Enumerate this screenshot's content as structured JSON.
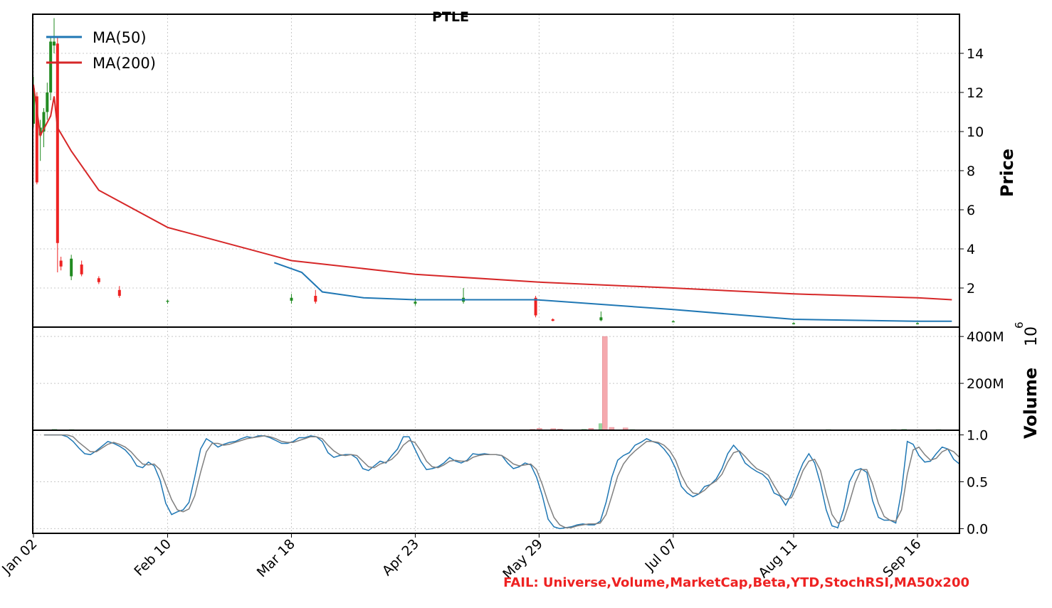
{
  "chart_data": [
    {
      "type": "candlestick",
      "title": "PTLE",
      "ylabel": "Price",
      "ylim": [
        0,
        16
      ],
      "yticks": [
        2,
        4,
        6,
        8,
        10,
        12,
        14
      ],
      "grid": true,
      "legend_position": "top-left",
      "colors": {
        "up": "#228B22",
        "down": "#ee2222",
        "ma50": "#1f77b4",
        "ma200": "#d62728"
      },
      "x": [
        "Jan 02",
        "Feb 10",
        "Mar 18",
        "Apr 23",
        "May 29",
        "Jul 07",
        "Aug 11",
        "Sep 16"
      ],
      "candles_sample": [
        {
          "date": "Jan 02",
          "open": 10.4,
          "high": 12.8,
          "low": 10.2,
          "close": 12.2
        },
        {
          "date": "Jan 03",
          "open": 11.8,
          "high": 12.0,
          "low": 7.3,
          "close": 7.4
        },
        {
          "date": "Jan 04",
          "open": 9.8,
          "high": 10.6,
          "low": 8.5,
          "close": 10.2
        },
        {
          "date": "Jan 05",
          "open": 10.0,
          "high": 11.2,
          "low": 9.2,
          "close": 11.0
        },
        {
          "date": "Jan 06",
          "open": 11.0,
          "high": 12.5,
          "low": 10.6,
          "close": 12.0
        },
        {
          "date": "Jan 07",
          "open": 12.0,
          "high": 14.8,
          "low": 11.6,
          "close": 14.6
        },
        {
          "date": "Jan 08",
          "open": 14.4,
          "high": 15.8,
          "low": 14.0,
          "close": 14.6
        },
        {
          "date": "Jan 09",
          "open": 14.5,
          "high": 14.8,
          "low": 2.8,
          "close": 4.3
        },
        {
          "date": "Jan 10",
          "open": 3.4,
          "high": 3.6,
          "low": 2.9,
          "close": 3.1
        },
        {
          "date": "Jan 13",
          "open": 2.6,
          "high": 3.7,
          "low": 2.4,
          "close": 3.5
        },
        {
          "date": "Jan 16",
          "open": 3.2,
          "high": 3.4,
          "low": 2.6,
          "close": 2.7
        },
        {
          "date": "Jan 21",
          "open": 2.5,
          "high": 2.6,
          "low": 2.2,
          "close": 2.3
        },
        {
          "date": "Jan 27",
          "open": 1.9,
          "high": 2.1,
          "low": 1.5,
          "close": 1.6
        },
        {
          "date": "Feb 10",
          "open": 1.3,
          "high": 1.4,
          "low": 1.2,
          "close": 1.35
        },
        {
          "date": "Mar 18",
          "open": 1.35,
          "high": 1.7,
          "low": 1.2,
          "close": 1.5
        },
        {
          "date": "Mar 25",
          "open": 1.6,
          "high": 1.9,
          "low": 1.2,
          "close": 1.3
        },
        {
          "date": "Apr 23",
          "open": 1.2,
          "high": 1.5,
          "low": 1.1,
          "close": 1.3
        },
        {
          "date": "May 07",
          "open": 1.3,
          "high": 2.0,
          "low": 1.2,
          "close": 1.5
        },
        {
          "date": "May 28",
          "open": 1.5,
          "high": 1.6,
          "low": 0.5,
          "close": 0.6
        },
        {
          "date": "Jun 02",
          "open": 0.4,
          "high": 0.45,
          "low": 0.3,
          "close": 0.32
        },
        {
          "date": "Jun 16",
          "open": 0.35,
          "high": 0.8,
          "low": 0.3,
          "close": 0.5
        },
        {
          "date": "Jul 07",
          "open": 0.3,
          "high": 0.35,
          "low": 0.25,
          "close": 0.3
        },
        {
          "date": "Aug 11",
          "open": 0.2,
          "high": 0.25,
          "low": 0.18,
          "close": 0.2
        },
        {
          "date": "Sep 16",
          "open": 0.2,
          "high": 0.25,
          "low": 0.18,
          "close": 0.2
        }
      ],
      "series": [
        {
          "name": "MA(50)",
          "x": [
            "Mar 13",
            "Mar 21",
            "Mar 27",
            "Apr 08",
            "Apr 23",
            "May 07",
            "May 28",
            "Jul 07",
            "Aug 11",
            "Sep 16",
            "Sep 26"
          ],
          "values": [
            3.3,
            2.8,
            1.8,
            1.5,
            1.4,
            1.4,
            1.4,
            0.9,
            0.4,
            0.3,
            0.3
          ]
        },
        {
          "name": "MA(200)",
          "x": [
            "Jan 02",
            "Jan 04",
            "Jan 07",
            "Jan 08",
            "Jan 09",
            "Jan 13",
            "Jan 21",
            "Feb 10",
            "Mar 18",
            "Apr 23",
            "May 29",
            "Jul 07",
            "Aug 11",
            "Sep 16",
            "Sep 26"
          ],
          "values": [
            12.4,
            9.8,
            10.8,
            11.8,
            10.2,
            9.0,
            7.0,
            5.1,
            3.4,
            2.7,
            2.3,
            2.0,
            1.7,
            1.5,
            1.4
          ]
        }
      ]
    },
    {
      "type": "bar",
      "ylabel": "Volume",
      "exponent_label": "10",
      "exponent_power": "6",
      "yticks": [
        "200M",
        "400M"
      ],
      "ylim": [
        0,
        440
      ],
      "unit": "millions",
      "bars": [
        {
          "date": "Jan 08",
          "value": 4,
          "direction": "up"
        },
        {
          "date": "Jan 13",
          "value": 3,
          "direction": "up"
        },
        {
          "date": "May 20",
          "value": 2,
          "direction": "up"
        },
        {
          "date": "May 27",
          "value": 4,
          "direction": "down"
        },
        {
          "date": "May 29",
          "value": 8,
          "direction": "down"
        },
        {
          "date": "Jun 02",
          "value": 7,
          "direction": "down"
        },
        {
          "date": "Jun 04",
          "value": 5,
          "direction": "down"
        },
        {
          "date": "Jun 11",
          "value": 4,
          "direction": "up"
        },
        {
          "date": "Jun 13",
          "value": 8,
          "direction": "down"
        },
        {
          "date": "Jun 16",
          "value": 28,
          "direction": "up"
        },
        {
          "date": "Jun 17",
          "value": 400,
          "direction": "down"
        },
        {
          "date": "Jun 19",
          "value": 12,
          "direction": "down"
        },
        {
          "date": "Jun 23",
          "value": 10,
          "direction": "down"
        },
        {
          "date": "Jun 25",
          "value": 3,
          "direction": "up"
        },
        {
          "date": "Aug 21",
          "value": 3,
          "direction": "up"
        },
        {
          "date": "Sep 09",
          "value": 3,
          "direction": "up"
        },
        {
          "date": "Sep 12",
          "value": 4,
          "direction": "up"
        },
        {
          "date": "Sep 22",
          "value": 3,
          "direction": "up"
        }
      ]
    },
    {
      "type": "line",
      "yticks": [
        0.0,
        0.5,
        1.0
      ],
      "ylim": [
        -0.05,
        1.05
      ],
      "series": [
        {
          "color": "#1f77b4",
          "values": [
            1.0,
            1.0,
            1.0,
            1.0,
            0.98,
            0.93,
            0.86,
            0.8,
            0.79,
            0.83,
            0.88,
            0.93,
            0.91,
            0.88,
            0.84,
            0.77,
            0.67,
            0.65,
            0.71,
            0.67,
            0.52,
            0.27,
            0.15,
            0.18,
            0.2,
            0.28,
            0.55,
            0.85,
            0.96,
            0.92,
            0.87,
            0.9,
            0.92,
            0.93,
            0.96,
            0.98,
            0.97,
            0.99,
            0.99,
            0.97,
            0.94,
            0.91,
            0.91,
            0.93,
            0.97,
            0.97,
            0.99,
            0.98,
            0.93,
            0.81,
            0.76,
            0.78,
            0.79,
            0.79,
            0.75,
            0.64,
            0.62,
            0.67,
            0.72,
            0.7,
            0.78,
            0.85,
            0.98,
            0.98,
            0.85,
            0.72,
            0.63,
            0.64,
            0.66,
            0.7,
            0.76,
            0.72,
            0.7,
            0.73,
            0.8,
            0.79,
            0.8,
            0.79,
            0.79,
            0.78,
            0.7,
            0.64,
            0.66,
            0.7,
            0.68,
            0.55,
            0.35,
            0.1,
            0.02,
            0.0,
            0.01,
            0.02,
            0.04,
            0.05,
            0.04,
            0.04,
            0.08,
            0.28,
            0.55,
            0.73,
            0.78,
            0.81,
            0.89,
            0.92,
            0.96,
            0.93,
            0.91,
            0.85,
            0.77,
            0.64,
            0.45,
            0.38,
            0.34,
            0.37,
            0.45,
            0.47,
            0.53,
            0.64,
            0.8,
            0.89,
            0.82,
            0.7,
            0.65,
            0.61,
            0.58,
            0.52,
            0.38,
            0.35,
            0.25,
            0.37,
            0.55,
            0.7,
            0.8,
            0.7,
            0.48,
            0.2,
            0.03,
            0.01,
            0.2,
            0.5,
            0.62,
            0.64,
            0.6,
            0.3,
            0.12,
            0.09,
            0.09,
            0.06,
            0.4,
            0.93,
            0.9,
            0.78,
            0.71,
            0.72,
            0.8,
            0.87,
            0.85,
            0.74,
            0.69
          ]
        },
        {
          "color": "#7f7f7f",
          "values": [
            1.0,
            1.0,
            1.0,
            1.0,
            1.0,
            0.98,
            0.92,
            0.87,
            0.82,
            0.82,
            0.86,
            0.9,
            0.92,
            0.9,
            0.87,
            0.82,
            0.75,
            0.69,
            0.68,
            0.69,
            0.63,
            0.47,
            0.31,
            0.2,
            0.18,
            0.21,
            0.35,
            0.6,
            0.82,
            0.91,
            0.91,
            0.89,
            0.9,
            0.92,
            0.94,
            0.96,
            0.97,
            0.98,
            0.99,
            0.98,
            0.96,
            0.93,
            0.92,
            0.92,
            0.94,
            0.96,
            0.98,
            0.98,
            0.96,
            0.89,
            0.83,
            0.79,
            0.78,
            0.79,
            0.78,
            0.72,
            0.66,
            0.65,
            0.69,
            0.71,
            0.74,
            0.8,
            0.89,
            0.94,
            0.92,
            0.83,
            0.72,
            0.66,
            0.65,
            0.68,
            0.72,
            0.73,
            0.72,
            0.72,
            0.76,
            0.78,
            0.79,
            0.79,
            0.79,
            0.78,
            0.74,
            0.69,
            0.67,
            0.68,
            0.69,
            0.63,
            0.47,
            0.28,
            0.12,
            0.04,
            0.01,
            0.01,
            0.03,
            0.04,
            0.05,
            0.05,
            0.06,
            0.15,
            0.35,
            0.56,
            0.69,
            0.77,
            0.83,
            0.88,
            0.93,
            0.93,
            0.92,
            0.89,
            0.83,
            0.73,
            0.57,
            0.45,
            0.38,
            0.37,
            0.41,
            0.47,
            0.51,
            0.58,
            0.71,
            0.81,
            0.83,
            0.77,
            0.7,
            0.64,
            0.61,
            0.57,
            0.46,
            0.36,
            0.31,
            0.33,
            0.46,
            0.62,
            0.72,
            0.74,
            0.62,
            0.37,
            0.15,
            0.06,
            0.09,
            0.28,
            0.49,
            0.63,
            0.63,
            0.48,
            0.27,
            0.13,
            0.09,
            0.08,
            0.2,
            0.58,
            0.84,
            0.87,
            0.79,
            0.73,
            0.75,
            0.82,
            0.85,
            0.82,
            0.76
          ]
        }
      ]
    }
  ],
  "annotation": {
    "fail_text": "FAIL: Universe,Volume,MarketCap,Beta,YTD,StochRSI,MA50x200"
  }
}
